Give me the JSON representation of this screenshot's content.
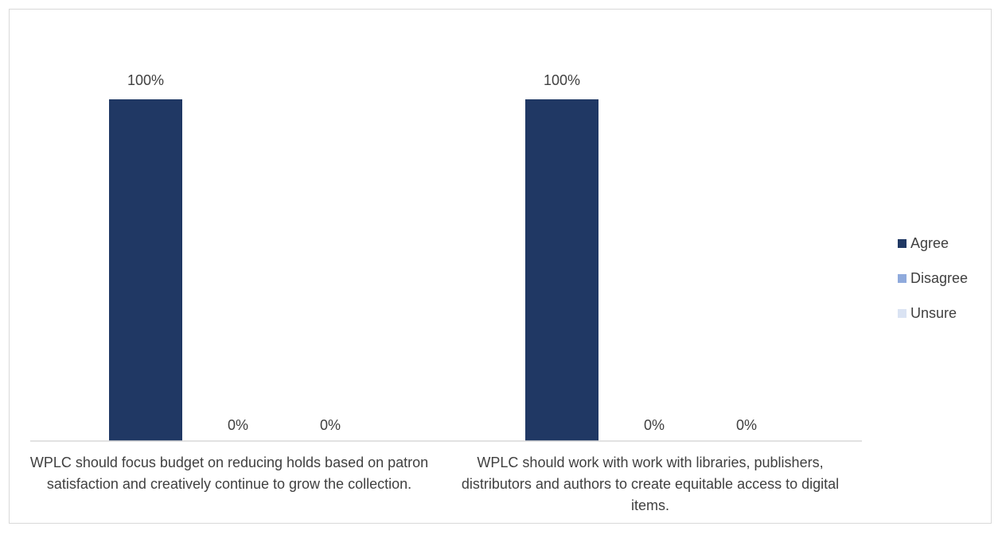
{
  "chart_data": {
    "type": "bar",
    "title": "",
    "xlabel": "",
    "ylabel": "",
    "ylim": [
      0,
      100
    ],
    "grid": false,
    "legend_position": "right",
    "categories": [
      "WPLC should focus budget on reducing holds based on patron satisfaction and creatively continue to grow the collection.",
      "WPLC should work with work with libraries, publishers, distributors and authors to create equitable access to digital items."
    ],
    "series": [
      {
        "name": "Agree",
        "color": "#203864",
        "values": [
          100,
          100
        ],
        "labels": [
          "100%",
          "100%"
        ]
      },
      {
        "name": "Disagree",
        "color": "#8faadc",
        "values": [
          0,
          0
        ],
        "labels": [
          "0%",
          "0%"
        ]
      },
      {
        "name": "Unsure",
        "color": "#dae3f3",
        "values": [
          0,
          0
        ],
        "labels": [
          "0%",
          "0%"
        ]
      }
    ]
  }
}
